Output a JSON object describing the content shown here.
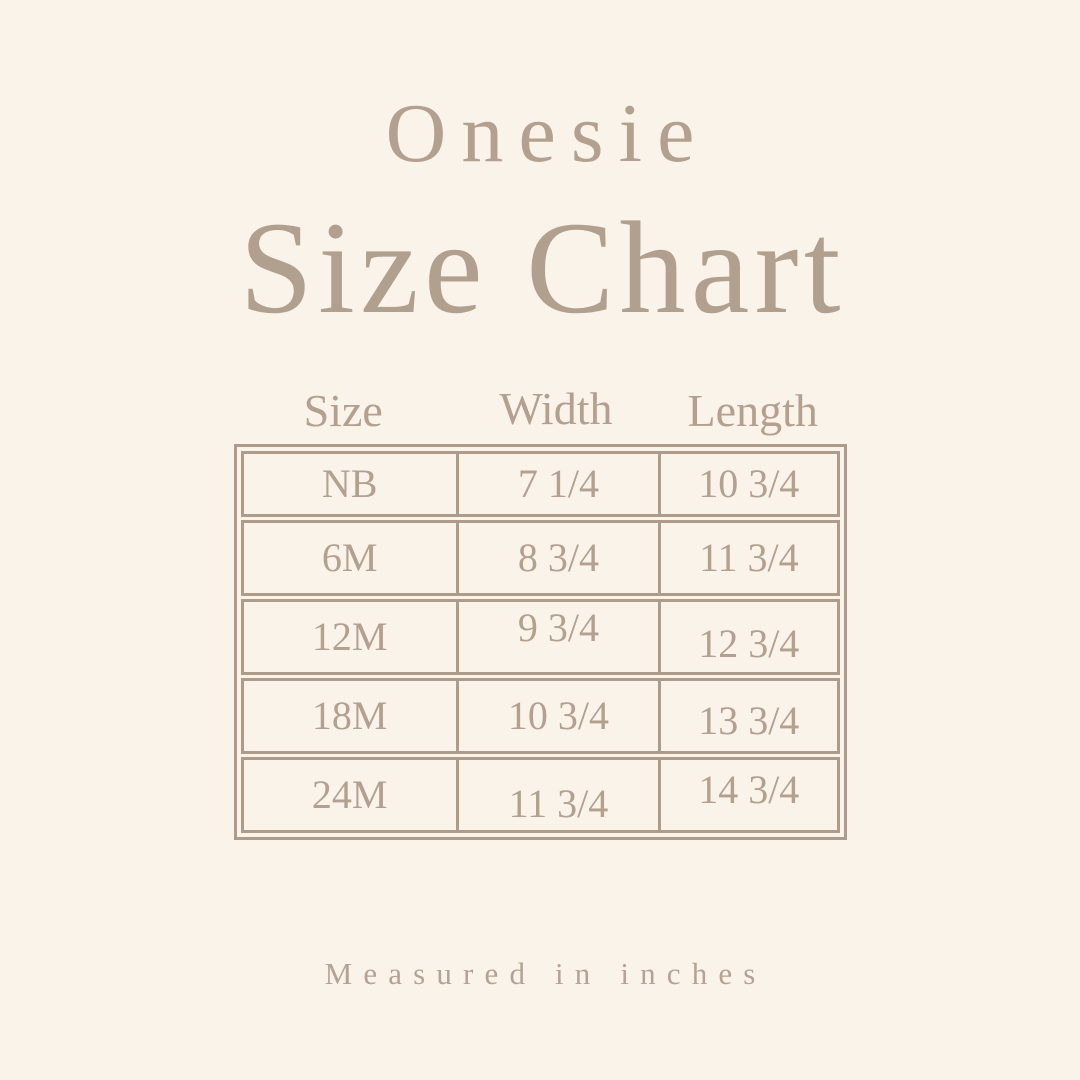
{
  "title": {
    "product": "Onesie",
    "main": "Size Chart"
  },
  "footer": {
    "note": "Measured in inches"
  },
  "colors": {
    "background": "#FAF3EA",
    "ink": "#B3A08E",
    "line": "#AE9B8A"
  },
  "chart_data": {
    "type": "table",
    "title": "Onesie Size Chart",
    "unit": "inches",
    "columns": [
      "Size",
      "Width",
      "Length"
    ],
    "rows": [
      [
        "NB",
        "7 1/4",
        "10 3/4"
      ],
      [
        "6M",
        "8 3/4",
        "11 3/4"
      ],
      [
        "12M",
        "9 3/4",
        "12 3/4"
      ],
      [
        "18M",
        "10 3/4",
        "13 3/4"
      ],
      [
        "24M",
        "11 3/4",
        "14 3/4"
      ]
    ]
  }
}
